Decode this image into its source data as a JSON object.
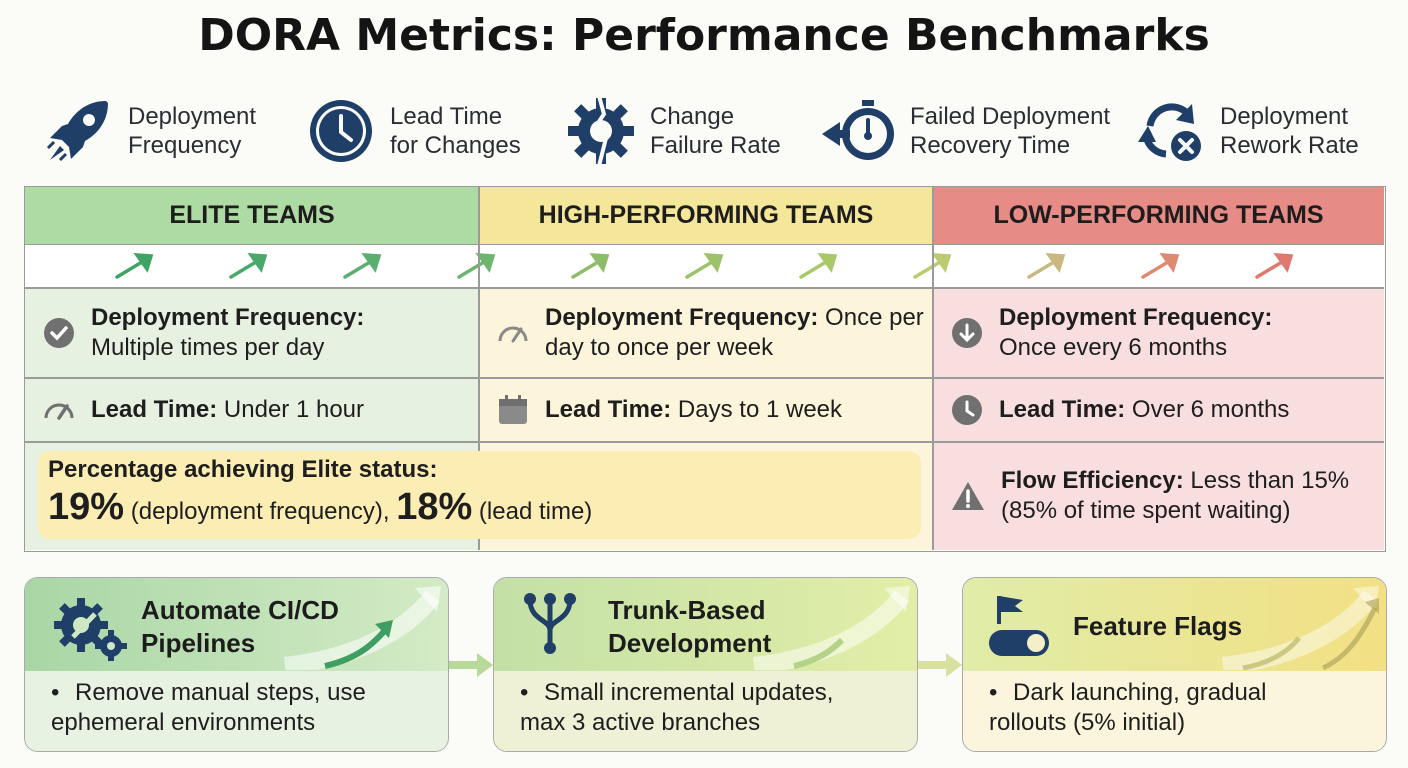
{
  "title": "DORA Metrics: Performance Benchmarks",
  "metrics": [
    {
      "label": "Deployment\nFrequency",
      "icon": "rocket-icon"
    },
    {
      "label": "Lead Time\nfor Changes",
      "icon": "clock-icon"
    },
    {
      "label": "Change\nFailure Rate",
      "icon": "broken-gear-icon"
    },
    {
      "label": "Failed Deployment\nRecovery Time",
      "icon": "stopwatch-back-icon"
    },
    {
      "label": "Deployment\nRework Rate",
      "icon": "cycle-x-icon"
    }
  ],
  "columns": [
    {
      "header": "ELITE TEAMS",
      "color": "#aedaa3"
    },
    {
      "header": "HIGH-PERFORMING TEAMS",
      "color": "#f5e79a"
    },
    {
      "header": "LOW-PERFORMING TEAMS",
      "color": "#e68b86"
    }
  ],
  "elite": {
    "deploy_label": "Deployment Frequency:",
    "deploy_value": "Multiple times per day",
    "lead_label": "Lead Time:",
    "lead_value": " Under 1 hour"
  },
  "high": {
    "deploy_label": "Deployment Frequency:",
    "deploy_value": " Once per day to once per week",
    "lead_label": "Lead Time:",
    "lead_value": " Days to 1 week"
  },
  "low": {
    "deploy_label": "Deployment Frequency:",
    "deploy_value": "Once every 6 months",
    "lead_label": "Lead Time:",
    "lead_value": " Over 6 months",
    "flow_label": "Flow Efficiency:",
    "flow_value": " Less than 15% (85% of time spent waiting)"
  },
  "elite_pct": {
    "heading": "Percentage achieving Elite status:",
    "deploy_pct": "19%",
    "deploy_note": " (deployment frequency), ",
    "lead_pct": "18%",
    "lead_note": " (lead time)"
  },
  "practices": [
    {
      "title": "Automate CI/CD\nPipelines",
      "text": "Remove manual steps, use\nephemeral environments",
      "icon": "gears-wrench-icon"
    },
    {
      "title": "Trunk-Based\nDevelopment",
      "text": "Small incremental updates,\nmax 3 active branches",
      "icon": "branch-icon"
    },
    {
      "title": "Feature Flags",
      "text": "Dark launching, gradual\nrollouts (5% initial)",
      "icon": "flag-toggle-icon"
    }
  ],
  "colors": {
    "navy": "#1f3f68",
    "elite_bg": "#e6f1e1",
    "high_bg": "#fcf5dc",
    "low_bg": "#f8dede"
  }
}
